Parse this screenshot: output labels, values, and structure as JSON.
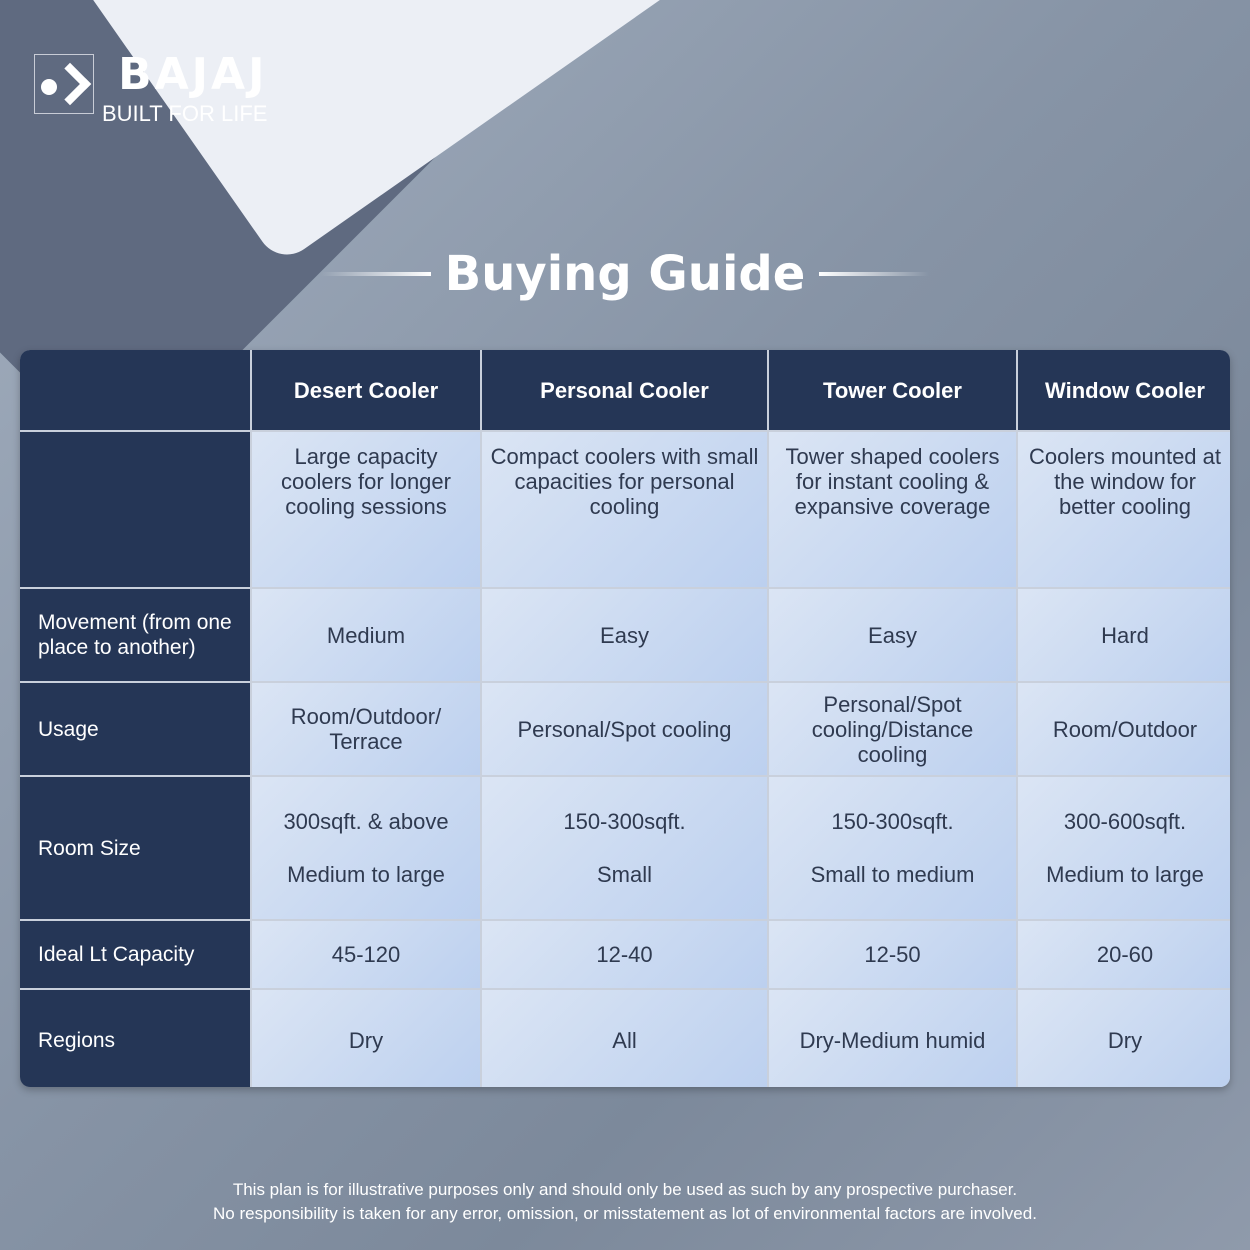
{
  "brand": {
    "name": "BAJAJ",
    "tagline": "BUILT FOR LIFE"
  },
  "title": "Buying Guide",
  "table": {
    "columns": [
      "",
      "Desert Cooler",
      "Personal Cooler",
      "Tower Cooler",
      "Window Cooler"
    ],
    "rows": [
      {
        "label": "",
        "cells": [
          "Large capacity coolers for longer cooling sessions",
          "Compact coolers with small capacities for personal cooling",
          "Tower shaped coolers for instant cooling & expansive coverage",
          "Coolers mounted at the window for better cooling"
        ]
      },
      {
        "label": "Movement (from one place to another)",
        "cells": [
          "Medium",
          "Easy",
          "Easy",
          "Hard"
        ]
      },
      {
        "label": "Usage",
        "cells": [
          "Room/Outdoor/ Terrace",
          "Personal/Spot cooling",
          "Personal/Spot cooling/Distance cooling",
          "Room/Outdoor"
        ]
      },
      {
        "label": "Room Size",
        "cells": [
          [
            "300sqft. & above",
            "Medium to large"
          ],
          [
            "150-300sqft.",
            "Small"
          ],
          [
            "150-300sqft.",
            "Small to medium"
          ],
          [
            "300-600sqft.",
            "Medium to large"
          ]
        ]
      },
      {
        "label": "Ideal Lt Capacity",
        "cells": [
          "45-120",
          "12-40",
          "12-50",
          "20-60"
        ]
      },
      {
        "label": "Regions",
        "cells": [
          "Dry",
          "All",
          "Dry-Medium humid",
          "Dry"
        ]
      }
    ]
  },
  "footer": {
    "line1": "This plan is for illustrative purposes only and should only be used as such by any prospective purchaser.",
    "line2": "No responsibility is taken for any error, omission, or misstatement as lot of environmental factors are involved."
  },
  "colors": {
    "header": "#253656",
    "cell": "#c8d8f0"
  }
}
